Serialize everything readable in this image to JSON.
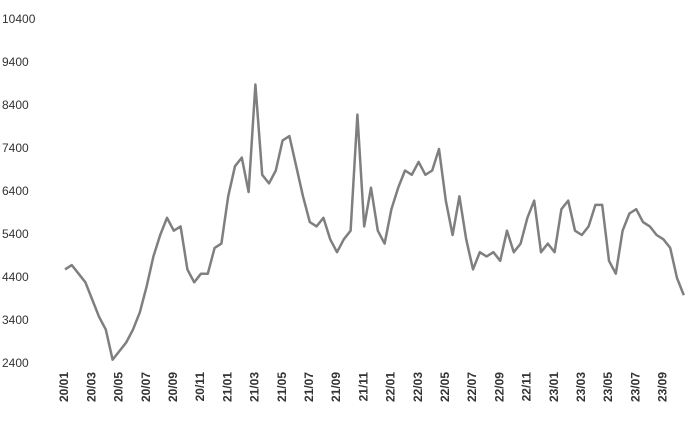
{
  "chart_data": {
    "type": "line",
    "categories": [
      "20/01",
      null,
      null,
      null,
      "20/03",
      null,
      null,
      null,
      "20/05",
      null,
      null,
      null,
      "20/07",
      null,
      null,
      null,
      "20/09",
      null,
      null,
      null,
      "20/11",
      null,
      null,
      null,
      "21/01",
      null,
      null,
      null,
      "21/03",
      null,
      null,
      null,
      "21/05",
      null,
      null,
      null,
      "21/07",
      null,
      null,
      null,
      "21/09",
      null,
      null,
      null,
      "21/11",
      null,
      null,
      null,
      "22/01",
      null,
      null,
      null,
      "22/03",
      null,
      null,
      null,
      "22/05",
      null,
      null,
      null,
      "22/07",
      null,
      null,
      null,
      "22/09",
      null,
      null,
      null,
      "22/11",
      null,
      null,
      null,
      "23/01",
      null,
      null,
      null,
      "23/03",
      null,
      null,
      null,
      "23/05",
      null,
      null,
      null,
      "23/07",
      null,
      null,
      null,
      "23/09",
      null,
      null,
      null
    ],
    "values": [
      4600,
      4700,
      4500,
      4300,
      3900,
      3500,
      3200,
      2500,
      2700,
      2900,
      3200,
      3600,
      4200,
      4900,
      5400,
      5800,
      5500,
      5600,
      4600,
      4300,
      4500,
      4500,
      5100,
      5200,
      6300,
      7000,
      7200,
      6400,
      8900,
      6800,
      6600,
      6900,
      7600,
      7700,
      7000,
      6300,
      5700,
      5600,
      5800,
      5300,
      5000,
      5300,
      5500,
      8200,
      5600,
      6500,
      5500,
      5200,
      6000,
      6500,
      6900,
      6800,
      7100,
      6800,
      6900,
      7400,
      6200,
      5400,
      6300,
      5300,
      4600,
      5000,
      4900,
      5000,
      4800,
      5500,
      5000,
      5200,
      5800,
      6200,
      5000,
      5200,
      5000,
      6000,
      6200,
      5500,
      5400,
      5600,
      6100,
      6100,
      4800,
      4500,
      5500,
      5900,
      6000,
      5700,
      5600,
      5400,
      5300,
      5100,
      4400,
      4000
    ],
    "color": "#7f7f7f",
    "ylim": [
      2400,
      10400
    ],
    "yticks": [
      2400,
      3400,
      4400,
      5400,
      6400,
      7400,
      8400,
      9400,
      10400
    ]
  }
}
